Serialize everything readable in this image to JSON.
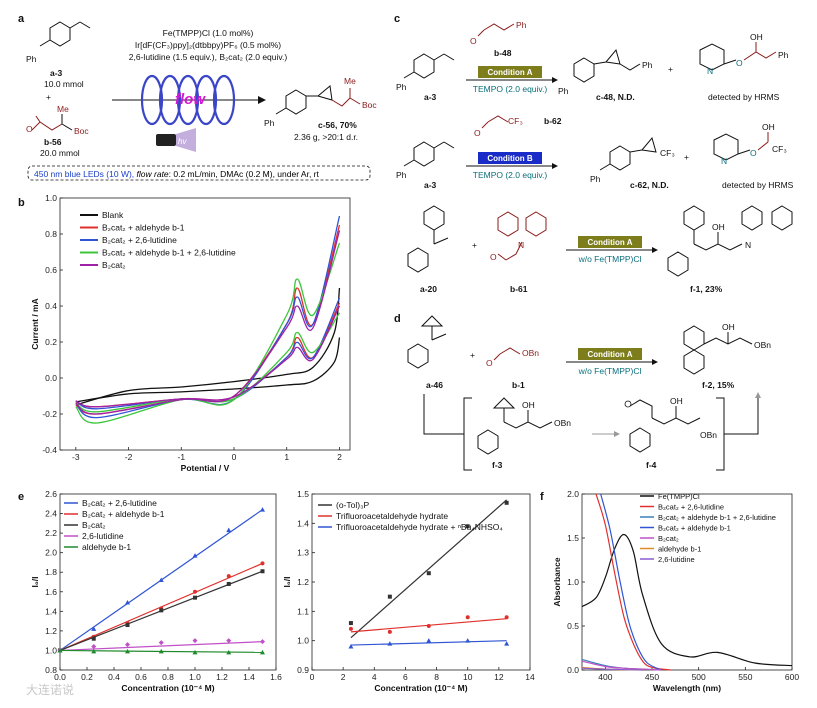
{
  "panel_labels": {
    "a": "a",
    "b": "b",
    "c": "c",
    "d": "d",
    "e": "e",
    "f": "f"
  },
  "panel_a": {
    "conditions": [
      "Fe(TMPP)Cl (1.0 mol%)",
      "Ir[dF(CF₃)ppy]₂(dtbbpy)PF₆ (0.5 mol%)",
      "2,6-lutidine (1.5 equiv.), B₂cat₂ (2.0 equiv.)"
    ],
    "flow_label": "flow",
    "hv": "hv",
    "reactant1": {
      "name": "a-3",
      "amount": "10.0 mmol",
      "ph": "Ph"
    },
    "plus": "+",
    "reactant2": {
      "name": "b-56",
      "amount": "20.0 mmol",
      "me": "Me",
      "boc": "Boc"
    },
    "product": {
      "name": "c-56, 70%",
      "yield_detail": "2.36 g, >20:1 d.r.",
      "me": "Me",
      "boc": "Boc",
      "ph": "Ph"
    },
    "footnote": {
      "highlight": "450 nm blue LEDs (10 W),",
      "rest_italic": "flow rate",
      "rest": ": 0.2 mL/min, DMAc (0.2 M), under Ar, rt"
    }
  },
  "panel_b": {
    "xlabel": "Potential / V",
    "ylabel": "Current / mA",
    "xticks": [
      "-3",
      "-2",
      "-1",
      "0",
      "1",
      "2"
    ],
    "yticks": [
      "1.0",
      "0.8",
      "0.6",
      "0.4",
      "0.2",
      "0.0",
      "-0.2",
      "-0.4"
    ],
    "legend": [
      {
        "label": "Blank",
        "color": "#111111"
      },
      {
        "label": "B₂cat₂ + aldehyde b-1",
        "color": "#e0302c"
      },
      {
        "label": "B₂cat₂ + 2,6-lutidine",
        "color": "#2f55d4"
      },
      {
        "label": "B₂cat₂ + aldehyde b-1 + 2,6-lutidine",
        "color": "#3cc63c"
      },
      {
        "label": "B₂cat₂",
        "color": "#a020a8"
      }
    ]
  },
  "panel_c": {
    "row1": {
      "start": "a-3",
      "aldehyde": "b-48",
      "condition": "Condition A",
      "additive": "TEMPO (2.0 equiv.)",
      "product": "c-48, N.D.",
      "detected": "detected by HRMS",
      "ph": "Ph",
      "ph2": "Ph",
      "ph3": "Ph",
      "oh": "OH",
      "o": "O",
      "n": "N",
      "ph4": "Ph"
    },
    "row2": {
      "start": "a-3",
      "aldehyde": "b-62",
      "condition": "Condition B",
      "additive": "TEMPO (2.0 equiv.)",
      "product": "c-62, N.D.",
      "detected": "detected by HRMS",
      "cf3": "CF₃",
      "cf3b": "CF₃",
      "cf3c": "CF₃",
      "ph": "Ph",
      "ph2": "Ph",
      "oh": "OH",
      "o": "O",
      "n": "N"
    },
    "row3": {
      "start": "a-20",
      "aldehyde": "b-61",
      "condition": "Condition A",
      "additive": "w/o Fe(TMPP)Cl",
      "product": "f-1, 23%",
      "plus": "+",
      "oh": "OH",
      "n": "N",
      "n2": "N",
      "o": "O"
    }
  },
  "panel_d": {
    "start": "a-46",
    "aldehyde": "b-1",
    "obn": "OBn",
    "condition": "Condition A",
    "additive": "w/o Fe(TMPP)Cl",
    "product": "f-2, 15%",
    "plus": "+",
    "int1": "f-3",
    "int2": "f-4",
    "oh": "OH",
    "obn2": "OBn",
    "obn3": "OBn",
    "oh2": "OH",
    "oh3": "OH",
    "o": "O"
  },
  "panel_e1": {
    "xlabel": "Concentration (10⁻⁴ M)",
    "ylabel": "I₀/I",
    "xticks": [
      "0.0",
      "0.2",
      "0.4",
      "0.6",
      "0.8",
      "1.0",
      "1.2",
      "1.4",
      "1.6"
    ],
    "yticks": [
      "0.8",
      "1.0",
      "1.2",
      "1.4",
      "1.6",
      "1.8",
      "2.0",
      "2.2",
      "2.4",
      "2.6"
    ],
    "legend": [
      {
        "label": "B₂cat₂ + 2,6-lutidine",
        "color": "#2f55d4"
      },
      {
        "label": "B₂cat₂ + aldehyde b-1",
        "color": "#e0302c"
      },
      {
        "label": "B₂cat₂",
        "color": "#333333"
      },
      {
        "label": "2,6-lutidine",
        "color": "#c050c8"
      },
      {
        "label": "aldehyde b-1",
        "color": "#1f8a2a"
      }
    ]
  },
  "panel_e2": {
    "xlabel": "Concentration (10⁻⁴ M)",
    "ylabel": "I₀/I",
    "xticks": [
      "0",
      "2",
      "4",
      "6",
      "8",
      "10",
      "12",
      "14"
    ],
    "yticks": [
      "0.9",
      "1.0",
      "1.1",
      "1.2",
      "1.3",
      "1.4",
      "1.5"
    ],
    "legend": [
      {
        "label": "(o-Tol)₃P",
        "color": "#333333"
      },
      {
        "label": "Trifluoroacetaldehyde hydrate",
        "color": "#e0302c"
      },
      {
        "label": "Trifluoroacetaldehyde hydrate + ⁿBu₄NHSO₄",
        "color": "#2f55d4"
      }
    ]
  },
  "panel_f": {
    "xlabel": "Wavelength (nm)",
    "ylabel": "Absorbance",
    "xticks": [
      "400",
      "450",
      "500",
      "550",
      "600"
    ],
    "yticks": [
      "0.0",
      "0.5",
      "1.0",
      "1.5",
      "2.0"
    ],
    "legend": [
      {
        "label": "Fe(TMPP)Cl",
        "color": "#111111"
      },
      {
        "label": "B₂cat₂ + 2,6-lutidine",
        "color": "#e0302c"
      },
      {
        "label": "B₂cat₂ + aldehyde b-1 + 2,6-lutidine",
        "color": "#3a7fb8"
      },
      {
        "label": "B₂cat₂ + aldehyde b-1",
        "color": "#2f55d4"
      },
      {
        "label": "B₂cat₂",
        "color": "#c050c8"
      },
      {
        "label": "aldehyde b-1",
        "color": "#e08a2a"
      },
      {
        "label": "2,6-lutidine",
        "color": "#8a5cd0"
      }
    ]
  },
  "watermark": "大连诺说",
  "chart_data": [
    {
      "type": "line",
      "panel": "b",
      "xlabel": "Potential / V",
      "ylabel": "Current / mA",
      "xlim": [
        -3.3,
        2.2
      ],
      "ylim": [
        -0.4,
        1.0
      ],
      "series": [
        {
          "name": "Blank",
          "values_note": "",
          "x": [
            -3,
            -2,
            -1,
            0,
            1,
            1.5,
            1.9,
            2
          ],
          "y": [
            -0.15,
            -0.07,
            -0.05,
            -0.02,
            0.02,
            0.06,
            0.25,
            0.5
          ]
        },
        {
          "name": "B₂cat₂ + aldehyde b-1",
          "x": [
            -3,
            -2.6,
            -1,
            0,
            1,
            1.2,
            1.5,
            2
          ],
          "y": [
            -0.15,
            -0.2,
            -0.12,
            -0.1,
            0.3,
            0.5,
            0.3,
            0.85
          ]
        },
        {
          "name": "B₂cat₂ + 2,6-lutidine",
          "x": [
            -3,
            -2.6,
            -1,
            0,
            1,
            1.2,
            1.5,
            2
          ],
          "y": [
            -0.14,
            -0.22,
            -0.12,
            -0.12,
            0.3,
            0.45,
            0.3,
            0.9
          ]
        },
        {
          "name": "B₂cat₂ + aldehyde b-1 + 2,6-lutidine",
          "x": [
            -3,
            -2.6,
            -1,
            0,
            1,
            1.2,
            1.5,
            2
          ],
          "y": [
            -0.16,
            -0.25,
            -0.12,
            -0.12,
            0.35,
            0.55,
            0.35,
            0.75
          ]
        },
        {
          "name": "B₂cat₂",
          "x": [
            -3,
            -2.6,
            -1,
            0,
            1,
            1.2,
            1.5,
            2
          ],
          "y": [
            -0.14,
            -0.2,
            -0.12,
            -0.1,
            0.28,
            0.4,
            0.28,
            0.82
          ]
        }
      ]
    },
    {
      "type": "scatter",
      "panel": "e-left",
      "xlabel": "Concentration (10⁻⁴ M)",
      "ylabel": "I₀/I",
      "xlim": [
        0,
        1.6
      ],
      "ylim": [
        0.8,
        2.6
      ],
      "x": [
        0,
        0.25,
        0.5,
        0.75,
        1.0,
        1.25,
        1.5
      ],
      "series": [
        {
          "name": "B₂cat₂ + 2,6-lutidine",
          "values": [
            1.0,
            1.22,
            1.49,
            1.72,
            1.97,
            2.23,
            2.44
          ]
        },
        {
          "name": "B₂cat₂ + aldehyde b-1",
          "values": [
            1.0,
            1.14,
            1.28,
            1.43,
            1.6,
            1.76,
            1.89
          ]
        },
        {
          "name": "B₂cat₂",
          "values": [
            1.0,
            1.12,
            1.26,
            1.41,
            1.54,
            1.68,
            1.81
          ]
        },
        {
          "name": "2,6-lutidine",
          "values": [
            1.0,
            1.04,
            1.06,
            1.08,
            1.1,
            1.1,
            1.09
          ]
        },
        {
          "name": "aldehyde b-1",
          "values": [
            1.0,
            0.99,
            0.99,
            0.99,
            0.98,
            0.98,
            0.98
          ]
        }
      ]
    },
    {
      "type": "scatter",
      "panel": "e-right",
      "xlabel": "Concentration (10⁻⁴ M)",
      "ylabel": "I₀/I",
      "xlim": [
        0,
        14
      ],
      "ylim": [
        0.9,
        1.5
      ],
      "x": [
        2.5,
        5,
        7.5,
        10,
        12.5
      ],
      "series": [
        {
          "name": "(o-Tol)₃P",
          "values": [
            1.06,
            1.15,
            1.23,
            1.39,
            1.47
          ]
        },
        {
          "name": "Trifluoroacetaldehyde hydrate",
          "values": [
            1.04,
            1.03,
            1.05,
            1.08,
            1.08
          ]
        },
        {
          "name": "Trifluoroacetaldehyde hydrate + ⁿBu₄NHSO₄",
          "values": [
            0.98,
            0.99,
            1.0,
            1.0,
            0.99
          ]
        }
      ]
    },
    {
      "type": "line",
      "panel": "f",
      "xlabel": "Wavelength (nm)",
      "ylabel": "Absorbance",
      "xlim": [
        375,
        600
      ],
      "ylim": [
        0,
        2.0
      ],
      "series": [
        {
          "name": "Fe(TMPP)Cl",
          "x": [
            375,
            390,
            400,
            410,
            420,
            430,
            440,
            460,
            490,
            520,
            560,
            600
          ],
          "y": [
            0.72,
            0.82,
            1.05,
            1.38,
            1.54,
            1.35,
            0.85,
            0.3,
            0.15,
            0.2,
            0.08,
            0.05
          ]
        },
        {
          "name": "B₂cat₂ + 2,6-lutidine",
          "x": [
            390,
            400,
            410,
            420,
            430,
            440,
            450,
            470
          ],
          "y": [
            2.0,
            1.65,
            1.1,
            0.6,
            0.3,
            0.1,
            0.03,
            0.0
          ]
        },
        {
          "name": "B₂cat₂ + aldehyde b-1 + 2,6-lutidine",
          "x": [
            375,
            400,
            420,
            440,
            460
          ],
          "y": [
            0.12,
            0.05,
            0.02,
            0.01,
            0.0
          ]
        },
        {
          "name": "B₂cat₂ + aldehyde b-1",
          "x": [
            395,
            405,
            415,
            425,
            435,
            445,
            460
          ],
          "y": [
            2.0,
            1.6,
            1.05,
            0.55,
            0.25,
            0.08,
            0.0
          ]
        },
        {
          "name": "B₂cat₂",
          "x": [
            375,
            400,
            420,
            440,
            460
          ],
          "y": [
            0.1,
            0.04,
            0.02,
            0.01,
            0.0
          ]
        },
        {
          "name": "aldehyde b-1",
          "x": [
            375,
            400,
            440
          ],
          "y": [
            0.03,
            0.01,
            0.0
          ]
        },
        {
          "name": "2,6-lutidine",
          "x": [
            375,
            400,
            440
          ],
          "y": [
            0.02,
            0.01,
            0.0
          ]
        }
      ]
    }
  ]
}
